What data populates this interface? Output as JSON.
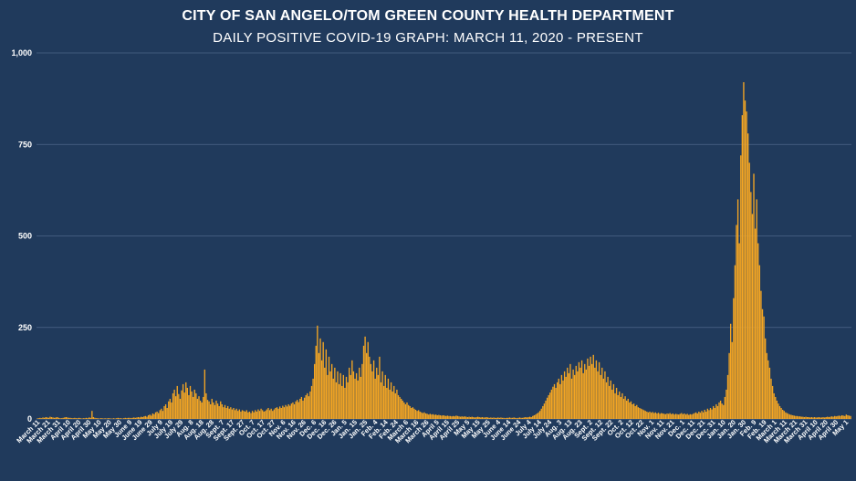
{
  "chart_data": {
    "type": "bar",
    "title": "CITY OF SAN ANGELO/TOM GREEN COUNTY HEALTH DEPARTMENT",
    "subtitle": "DAILY POSITIVE COVID-19 GRAPH: MARCH 11, 2020 - PRESENT",
    "xlabel": "",
    "ylabel": "",
    "ylim": [
      0,
      1000
    ],
    "y_ticks": [
      "0",
      "250",
      "500",
      "750",
      "1,000"
    ],
    "grid": true,
    "bar_color": "#f5a623",
    "gridline_color": "#4c6689",
    "x_ticks": [
      "March 11",
      "March 21",
      "March 31",
      "April 10",
      "April 20",
      "April 30",
      "May 10",
      "May 20",
      "May 30",
      "June 9",
      "June 19",
      "June 29",
      "July 9",
      "July 19",
      "July 29",
      "Aug. 8",
      "Aug. 18",
      "Aug. 28",
      "Sept. 7",
      "Sept. 17",
      "Sept. 27",
      "Oct. 7",
      "Oct. 17",
      "Oct. 27",
      "Nov. 6",
      "Nov. 16",
      "Nov. 26",
      "Dec. 6",
      "Dec. 16",
      "Dec. 26",
      "Jan. 5",
      "Jan. 15",
      "Jan. 25",
      "Feb. 4",
      "Feb. 14",
      "Feb. 24",
      "March 6",
      "March 16",
      "March 26",
      "April 5",
      "April 15",
      "April 25",
      "May 5",
      "May 15",
      "May 25",
      "June 4",
      "June 14",
      "June 24",
      "July 4",
      "July 14",
      "July 24",
      "Aug. 3",
      "Aug. 13",
      "Aug. 23",
      "Sept. 2",
      "Sept. 12",
      "Sept. 22",
      "Oct. 2",
      "Oct. 12",
      "Oct. 22",
      "Nov. 1",
      "Nov. 11",
      "Nov. 21",
      "Dec. 1",
      "Dec. 11",
      "Dec. 21",
      "Dec. 31",
      "Jan. 10",
      "Jan. 20",
      "Jan. 30",
      "Feb. 9",
      "Feb. 19",
      "March 1",
      "March 11",
      "March 21",
      "March 31",
      "April 10",
      "April 20",
      "April 30",
      "May 1"
    ],
    "series": [
      {
        "values": [
          1,
          2,
          3,
          2,
          4,
          3,
          5,
          4,
          3,
          6,
          5,
          4,
          3,
          4,
          5,
          3,
          2,
          2,
          3,
          4,
          5,
          4,
          3,
          3,
          2,
          2,
          3,
          2,
          2,
          3,
          2,
          1,
          2,
          2,
          3,
          2,
          4,
          3,
          22,
          5,
          3,
          2,
          2,
          1,
          2,
          2,
          1,
          2,
          1,
          2,
          2,
          1,
          1,
          2,
          1,
          2,
          3,
          2,
          2,
          1,
          2,
          3,
          2,
          3,
          3,
          2,
          3,
          4,
          3,
          4,
          5,
          4,
          6,
          5,
          7,
          8,
          6,
          10,
          12,
          9,
          15,
          13,
          18,
          20,
          16,
          24,
          28,
          22,
          35,
          40,
          30,
          48,
          55,
          45,
          70,
          80,
          62,
          90,
          68,
          55,
          78,
          95,
          72,
          100,
          85,
          65,
          90,
          75,
          60,
          80,
          70,
          55,
          62,
          50,
          45,
          60,
          135,
          70,
          52,
          48,
          40,
          55,
          45,
          38,
          50,
          42,
          35,
          48,
          40,
          32,
          38,
          30,
          35,
          28,
          32,
          26,
          30,
          24,
          28,
          22,
          26,
          20,
          24,
          22,
          20,
          24,
          18,
          20,
          16,
          22,
          18,
          24,
          20,
          26,
          22,
          28,
          24,
          20,
          22,
          26,
          30,
          24,
          28,
          22,
          26,
          30,
          32,
          28,
          34,
          30,
          36,
          32,
          38,
          34,
          40,
          36,
          42,
          45,
          40,
          48,
          52,
          46,
          55,
          60,
          50,
          58,
          65,
          70,
          62,
          75,
          90,
          110,
          150,
          200,
          255,
          180,
          220,
          160,
          210,
          140,
          190,
          120,
          170,
          130,
          150,
          110,
          140,
          100,
          130,
          95,
          125,
          90,
          120,
          85,
          115,
          100,
          140,
          120,
          160,
          130,
          110,
          125,
          105,
          140,
          115,
          150,
          200,
          225,
          180,
          210,
          170,
          150,
          130,
          160,
          110,
          140,
          120,
          170,
          100,
          130,
          90,
          120,
          85,
          110,
          80,
          100,
          75,
          90,
          70,
          80,
          65,
          60,
          55,
          50,
          45,
          40,
          45,
          38,
          35,
          30,
          32,
          28,
          25,
          22,
          24,
          20,
          18,
          16,
          18,
          15,
          14,
          12,
          14,
          12,
          13,
          11,
          12,
          10,
          11,
          10,
          9,
          10,
          9,
          8,
          9,
          8,
          8,
          7,
          8,
          7,
          9,
          8,
          7,
          6,
          7,
          6,
          7,
          6,
          5,
          6,
          5,
          6,
          5,
          4,
          5,
          6,
          5,
          4,
          5,
          4,
          4,
          5,
          4,
          3,
          4,
          3,
          4,
          3,
          3,
          4,
          3,
          4,
          3,
          3,
          2,
          3,
          3,
          4,
          3,
          3,
          4,
          3,
          2,
          3,
          4,
          3,
          3,
          4,
          5,
          4,
          5,
          6,
          5,
          8,
          10,
          12,
          15,
          18,
          22,
          28,
          35,
          42,
          50,
          58,
          65,
          72,
          80,
          88,
          95,
          85,
          100,
          110,
          95,
          120,
          105,
          130,
          115,
          140,
          125,
          150,
          110,
          135,
          120,
          145,
          130,
          155,
          140,
          160,
          125,
          150,
          135,
          165,
          145,
          170,
          150,
          175,
          140,
          160,
          130,
          155,
          120,
          140,
          110,
          130,
          100,
          115,
          90,
          105,
          80,
          95,
          70,
          85,
          65,
          75,
          60,
          70,
          55,
          62,
          50,
          55,
          45,
          48,
          40,
          42,
          35,
          38,
          32,
          30,
          28,
          26,
          24,
          22,
          20,
          18,
          20,
          17,
          19,
          16,
          18,
          15,
          17,
          14,
          16,
          15,
          14,
          13,
          15,
          14,
          16,
          13,
          15,
          12,
          14,
          13,
          12,
          14,
          16,
          13,
          15,
          12,
          14,
          11,
          13,
          12,
          14,
          16,
          18,
          15,
          20,
          17,
          22,
          18,
          25,
          20,
          28,
          24,
          30,
          26,
          35,
          30,
          40,
          35,
          45,
          50,
          42,
          38,
          60,
          80,
          120,
          180,
          260,
          210,
          330,
          420,
          530,
          600,
          480,
          720,
          830,
          920,
          870,
          840,
          780,
          700,
          620,
          560,
          670,
          520,
          600,
          480,
          420,
          350,
          300,
          280,
          220,
          180,
          160,
          140,
          110,
          90,
          70,
          60,
          50,
          42,
          35,
          30,
          25,
          22,
          18,
          16,
          14,
          12,
          11,
          10,
          9,
          8,
          8,
          7,
          7,
          6,
          6,
          5,
          6,
          5,
          5,
          4,
          5,
          4,
          5,
          4,
          4,
          5,
          4,
          4,
          5,
          4,
          5,
          6,
          5,
          6,
          7,
          6,
          8,
          7,
          8,
          9,
          8,
          10,
          9,
          8,
          12,
          10,
          9,
          8
        ]
      }
    ]
  }
}
